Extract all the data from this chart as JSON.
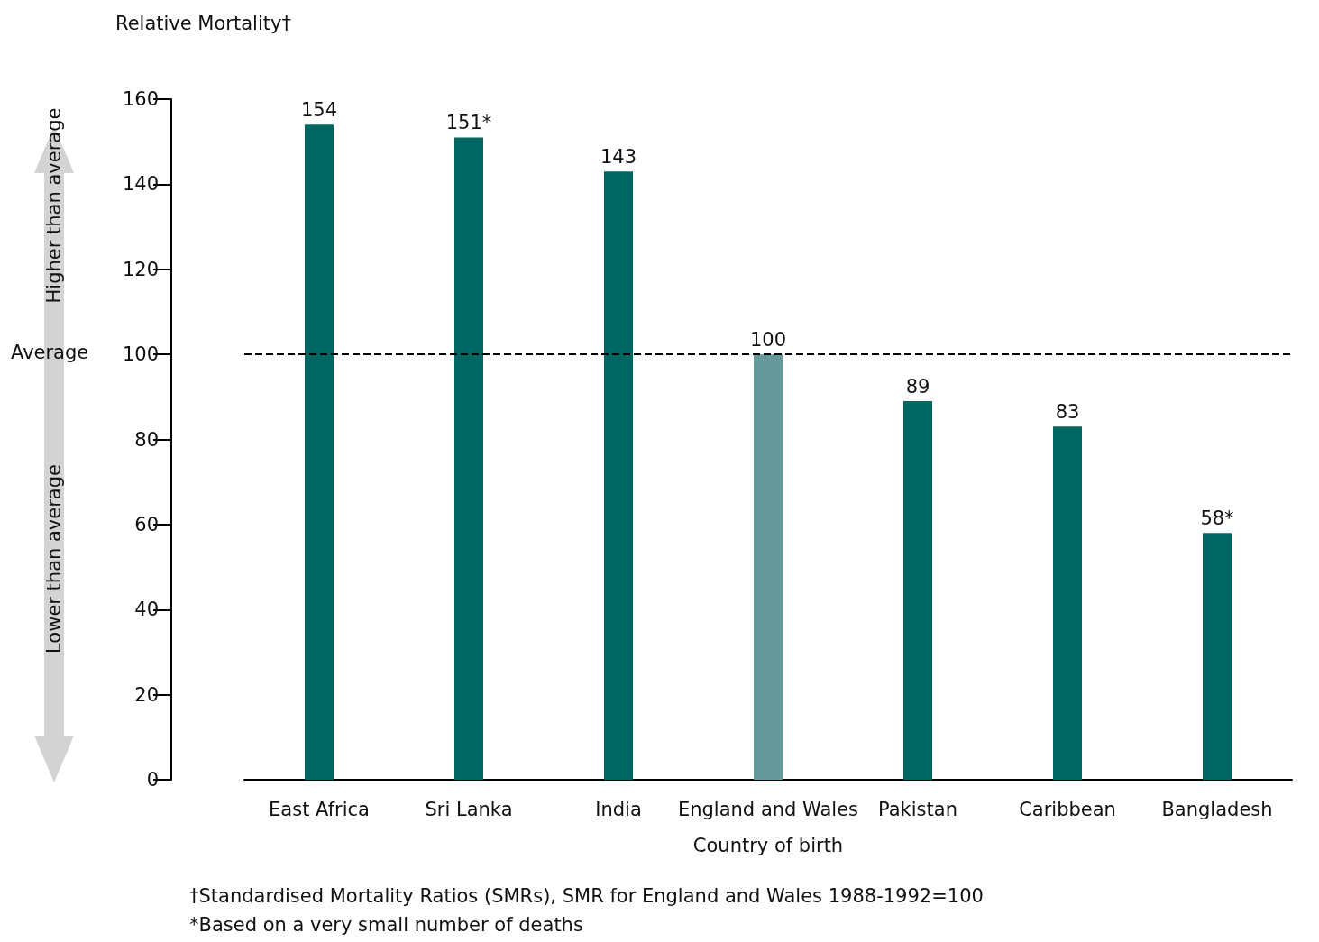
{
  "chart_data": {
    "type": "bar",
    "ylabel": "Relative Mortality†",
    "xlabel": "Country of birth",
    "categories": [
      "East Africa",
      "Sri Lanka",
      "India",
      "England and Wales",
      "Pakistan",
      "Caribbean",
      "Bangladesh"
    ],
    "values": [
      154,
      151,
      143,
      100,
      89,
      83,
      58
    ],
    "colors": [
      "#006661",
      "#006661",
      "#006661",
      "#669999",
      "#006661",
      "#006661",
      "#006661"
    ],
    "value_labels": [
      "154",
      "151*",
      "143",
      "100",
      "89",
      "83",
      "58*"
    ],
    "ylim": [
      0,
      160
    ],
    "yticks": [
      0,
      20,
      40,
      60,
      80,
      100,
      120,
      140,
      160
    ],
    "grid": false,
    "ref_lines": [
      {
        "axis": "y",
        "value": 100,
        "label": "Average",
        "color": "#000000",
        "line_style": "dashed"
      }
    ],
    "annotations": [
      "Higher than average",
      "Lower than average",
      "†Standardised Mortality Ratios (SMRs), SMR for England and Wales 1988-1992=100",
      "*Based on a very small number of deaths"
    ]
  }
}
